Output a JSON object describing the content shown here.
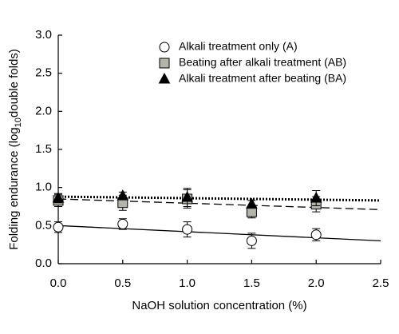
{
  "chart_data": {
    "type": "scatter",
    "x_label": "NaOH solution concentration (%)",
    "y_label": {
      "before": "Folding endurance (log",
      "sub": "10",
      "after": "double folds)"
    },
    "xlim": [
      0,
      2.5
    ],
    "ylim": [
      0,
      3.0
    ],
    "xticks": [
      {
        "value": 0,
        "label": "0.0"
      },
      {
        "value": 0.5,
        "label": "0.5"
      },
      {
        "value": 1,
        "label": "1.0"
      },
      {
        "value": 1.5,
        "label": "1.5"
      },
      {
        "value": 2,
        "label": "2.0"
      },
      {
        "value": 2.5,
        "label": "2.5"
      }
    ],
    "yticks": [
      {
        "value": 0,
        "label": "0.0"
      },
      {
        "value": 0.5,
        "label": "0.5"
      },
      {
        "value": 1,
        "label": "1.0"
      },
      {
        "value": 1.5,
        "label": "1.5"
      },
      {
        "value": 2,
        "label": "2.0"
      },
      {
        "value": 2.5,
        "label": "2.5"
      },
      {
        "value": 3,
        "label": "3.0"
      }
    ],
    "legend": "upper right",
    "series": [
      {
        "name": "Alkali treatment only (A)",
        "marker": "circle",
        "color": "#ffffff",
        "line_style": "solid",
        "x": [
          0,
          0.5,
          1,
          1.5,
          2
        ],
        "values": [
          0.48,
          0.52,
          0.45,
          0.3,
          0.38
        ],
        "errors": [
          0.07,
          0.07,
          0.1,
          0.1,
          0.08
        ],
        "fit": {
          "x": [
            0,
            2.5
          ],
          "y": [
            0.5,
            0.3
          ]
        }
      },
      {
        "name": "Beating after alkali treatment (AB)",
        "marker": "square",
        "color": "#b4b4aa",
        "line_style": "dashed",
        "x": [
          0,
          0.5,
          1,
          1.5,
          2
        ],
        "values": [
          0.83,
          0.8,
          0.85,
          0.68,
          0.78
        ],
        "errors": [
          0.08,
          0.1,
          0.12,
          0.08,
          0.1
        ],
        "fit": {
          "x": [
            0,
            2.5
          ],
          "y": [
            0.85,
            0.71
          ]
        }
      },
      {
        "name": "Alkali treatment after beating (BA)",
        "marker": "triangle",
        "color": "#000000",
        "line_style": "dotted",
        "x": [
          0,
          0.5,
          1,
          1.5,
          2
        ],
        "values": [
          0.86,
          0.89,
          0.87,
          0.78,
          0.86
        ],
        "errors": [
          0.06,
          0.05,
          0.12,
          0.05,
          0.1
        ],
        "fit": {
          "x": [
            0,
            2.5
          ],
          "y": [
            0.88,
            0.83
          ]
        }
      }
    ]
  }
}
